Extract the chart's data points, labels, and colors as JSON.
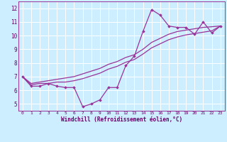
{
  "bg_color": "#cceeff",
  "line_color": "#993399",
  "xlabel": "Windchill (Refroidissement éolien,°C)",
  "xlim": [
    -0.5,
    23.5
  ],
  "ylim": [
    4.5,
    12.5
  ],
  "xticks": [
    0,
    1,
    2,
    3,
    4,
    5,
    6,
    7,
    8,
    9,
    10,
    11,
    12,
    13,
    14,
    15,
    16,
    17,
    18,
    19,
    20,
    21,
    22,
    23
  ],
  "yticks": [
    5,
    6,
    7,
    8,
    9,
    10,
    11,
    12
  ],
  "main_x": [
    0,
    1,
    2,
    3,
    4,
    5,
    6,
    7,
    8,
    9,
    10,
    11,
    12,
    13,
    14,
    15,
    16,
    17,
    18,
    19,
    20,
    21,
    22,
    23
  ],
  "main_y": [
    7.0,
    6.3,
    6.3,
    6.5,
    6.3,
    6.2,
    6.2,
    4.8,
    5.0,
    5.3,
    6.2,
    6.2,
    7.8,
    8.5,
    10.3,
    11.9,
    11.5,
    10.7,
    10.6,
    10.6,
    10.1,
    11.0,
    10.2,
    10.7
  ],
  "trend1_x": [
    0,
    1,
    2,
    3,
    4,
    5,
    6,
    7,
    8,
    9,
    10,
    11,
    12,
    13,
    14,
    15,
    16,
    17,
    18,
    19,
    20,
    21,
    22,
    23
  ],
  "trend1_y": [
    7.0,
    6.5,
    6.6,
    6.7,
    6.8,
    6.9,
    7.0,
    7.2,
    7.4,
    7.6,
    7.9,
    8.1,
    8.4,
    8.6,
    9.0,
    9.5,
    9.8,
    10.1,
    10.3,
    10.4,
    10.5,
    10.6,
    10.65,
    10.7
  ],
  "trend2_x": [
    0,
    1,
    2,
    3,
    4,
    5,
    6,
    7,
    8,
    9,
    10,
    11,
    12,
    13,
    14,
    15,
    16,
    17,
    18,
    19,
    20,
    21,
    22,
    23
  ],
  "trend2_y": [
    7.0,
    6.4,
    6.5,
    6.5,
    6.6,
    6.6,
    6.7,
    6.85,
    7.05,
    7.25,
    7.55,
    7.75,
    8.05,
    8.25,
    8.65,
    9.1,
    9.4,
    9.7,
    9.9,
    10.05,
    10.15,
    10.25,
    10.35,
    10.7
  ]
}
